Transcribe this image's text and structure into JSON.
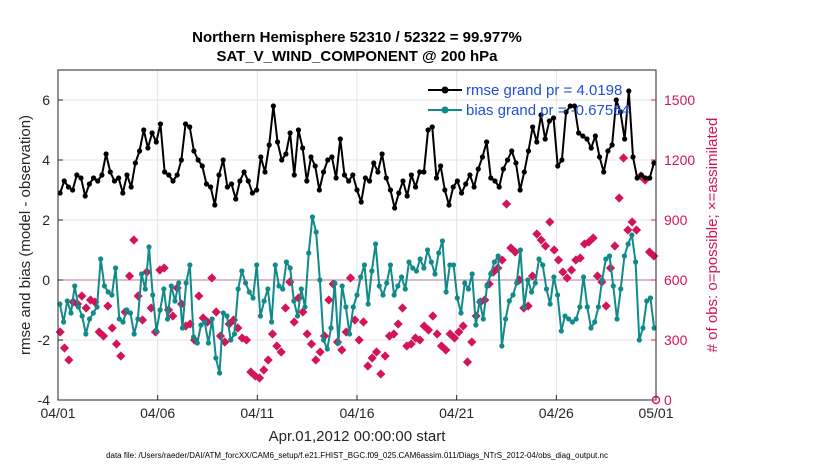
{
  "chart_data": {
    "type": "line",
    "title": "Northern Hemisphere 52310 / 52322 = 99.977%",
    "subtitle": "SAT_V_WIND_COMPONENT @ 200 hPa",
    "xlabel": "Apr.01,2012 00:00:00 start",
    "ylabel": "rmse and bias (model - observation)",
    "ylabel_right": "# of obs: o=possible; ×=assimilated",
    "footer": "data file: /Users/raeder/DAI/ATM_forcXX/CAM6_setup/f.e21.FHIST_BGC.f09_025.CAM6assim.011/Diags_NTrS_2012-04/obs_diag_output.nc",
    "x_ticks": [
      "04/01",
      "04/06",
      "04/11",
      "04/16",
      "04/21",
      "04/26",
      "05/01"
    ],
    "y_ticks": [
      "-4",
      "-2",
      "0",
      "2",
      "4",
      "6"
    ],
    "y2_ticks": [
      "0",
      "300",
      "600",
      "900",
      "1200",
      "1500"
    ],
    "xlim": [
      0,
      30
    ],
    "ylim": [
      -4,
      7
    ],
    "y2lim": [
      0,
      1650
    ],
    "zero_line": 0,
    "grid": true,
    "legend_location": "top-right",
    "series": [
      {
        "name": "rmse grand pr = 4.0198",
        "color": "#000000",
        "axis": "left",
        "values": [
          2.9,
          3.3,
          3.1,
          3.0,
          3.5,
          3.4,
          2.8,
          3.2,
          3.4,
          3.3,
          3.5,
          4.2,
          3.6,
          3.3,
          3.4,
          2.9,
          3.5,
          3.1,
          3.9,
          4.3,
          5.0,
          4.4,
          4.9,
          4.6,
          5.2,
          3.6,
          3.5,
          3.3,
          3.5,
          4.0,
          5.2,
          5.1,
          4.3,
          4.0,
          3.8,
          3.2,
          3.1,
          2.5,
          3.5,
          4.0,
          3.1,
          3.2,
          2.7,
          3.3,
          3.6,
          3.3,
          2.9,
          3.0,
          4.1,
          3.6,
          4.5,
          5.8,
          4.6,
          4.0,
          4.2,
          4.9,
          3.5,
          5.0,
          4.4,
          3.3,
          4.1,
          3.8,
          3.0,
          3.6,
          4.0,
          4.1,
          3.4,
          4.7,
          3.5,
          3.3,
          3.5,
          3.0,
          2.6,
          3.4,
          3.3,
          3.9,
          3.6,
          4.2,
          3.4,
          3.0,
          2.4,
          2.9,
          3.3,
          2.8,
          3.5,
          3.1,
          3.6,
          3.6,
          5.0,
          5.1,
          3.4,
          3.8,
          3.0,
          2.5,
          3.1,
          3.3,
          2.9,
          3.2,
          3.5,
          3.1,
          3.7,
          4.1,
          4.6,
          3.4,
          3.3,
          3.1,
          3.7,
          4.0,
          4.3,
          3.9,
          3.0,
          3.6,
          4.3,
          5.1,
          4.6,
          5.5,
          4.7,
          5.3,
          5.4,
          3.8,
          4.0,
          5.6,
          5.8,
          5.8,
          4.9,
          4.8,
          4.7,
          4.4,
          4.8,
          4.1,
          3.6,
          4.3,
          4.5,
          6.0,
          5.6,
          4.7,
          6.3,
          4.1,
          3.4,
          3.5,
          3.4,
          3.4,
          3.9
        ]
      },
      {
        "name": "bias grand pr = -0.67564",
        "color": "#108a8a",
        "axis": "left",
        "values": [
          -0.8,
          -1.4,
          -0.7,
          -1.1,
          -0.2,
          -0.9,
          -1.2,
          -1.8,
          -1.3,
          -1.1,
          -0.9,
          0.7,
          -0.2,
          -0.4,
          -0.5,
          0.4,
          -1.3,
          -1.4,
          -1.0,
          -1.1,
          -1.8,
          -1.3,
          0.2,
          -0.3,
          1.1,
          -0.5,
          -1.7,
          -1.0,
          -0.3,
          -1.3,
          -0.2,
          -0.7,
          -0.1,
          -1.6,
          -0.1,
          0.5,
          -1.9,
          -2.1,
          -1.5,
          -1.4,
          -2.1,
          -1.3,
          -2.6,
          -3.1,
          -1.1,
          -1.2,
          -2.0,
          -1.8,
          -0.3,
          0.3,
          -0.1,
          -0.4,
          -0.6,
          0.5,
          -1.2,
          -0.7,
          -0.3,
          -1.4,
          0.5,
          -0.2,
          -0.3,
          0.6,
          0.4,
          -0.7,
          -1.2,
          -0.3,
          -0.9,
          0.9,
          2.1,
          1.6,
          0.0,
          -2.0,
          -2.3,
          -1.6,
          -0.1,
          -2.1,
          -0.2,
          -0.9,
          -1.8,
          -0.9,
          -0.5,
          0.1,
          0.5,
          -0.8,
          0.3,
          1.2,
          -0.2,
          -0.5,
          -0.1,
          0.5,
          -0.5,
          -0.2,
          0.1,
          -0.3,
          0.6,
          0.4,
          0.3,
          0.7,
          0.4,
          1.0,
          0.6,
          0.2,
          0.9,
          1.3,
          -0.4,
          0.5,
          0.5,
          -0.6,
          -1.1,
          -0.1,
          -0.3,
          0.2,
          -1.5,
          -0.7,
          -1.3,
          -0.2,
          0.2,
          0.6,
          0.8,
          -2.2,
          -1.3,
          -0.7,
          -0.5,
          -0.1,
          1.0,
          -0.9,
          0.0,
          -0.4,
          -0.1,
          0.7,
          0.5,
          -0.3,
          -0.8,
          0.1,
          -0.5,
          -1.7,
          -1.2,
          -1.3,
          -1.4,
          -1.3,
          -0.9,
          0.1,
          -0.9,
          -1.6,
          -1.4,
          -0.9,
          0.0,
          0.7,
          0.8,
          -0.2,
          -1.3,
          -0.3,
          0.8,
          1.2,
          1.5,
          0.6,
          -2.0,
          -1.6,
          -0.7,
          -0.6,
          -1.6
        ]
      },
      {
        "name": "assimilated",
        "color": "#d4145a",
        "axis": "right",
        "values": [
          340,
          260,
          200,
          490,
          480,
          520,
          460,
          500,
          490,
          340,
          320,
          470,
          360,
          280,
          220,
          440,
          620,
          800,
          520,
          400,
          640,
          460,
          340,
          650,
          660,
          450,
          420,
          560,
          480,
          370,
          380,
          300,
          520,
          410,
          390,
          610,
          440,
          320,
          290,
          380,
          400,
          360,
          310,
          300,
          140,
          120,
          110,
          150,
          200,
          330,
          270,
          240,
          460,
          590,
          390,
          510,
          440,
          330,
          280,
          200,
          240,
          320,
          500,
          580,
          290,
          250,
          340,
          610,
          400,
          300,
          390,
          170,
          210,
          240,
          130,
          220,
          320,
          330,
          380,
          460,
          270,
          280,
          310,
          300,
          370,
          350,
          420,
          330,
          270,
          250,
          330,
          310,
          340,
          370,
          190,
          290,
          420,
          490,
          500,
          580,
          640,
          660,
          700,
          980,
          760,
          740,
          600,
          460,
          470,
          620,
          830,
          800,
          770,
          890,
          750,
          700,
          640,
          610,
          650,
          700,
          710,
          780,
          790,
          810,
          620,
          590,
          470,
          660,
          770,
          1010,
          1210,
          850,
          890,
          850,
          1120,
          1100,
          740,
          720
        ]
      }
    ]
  }
}
